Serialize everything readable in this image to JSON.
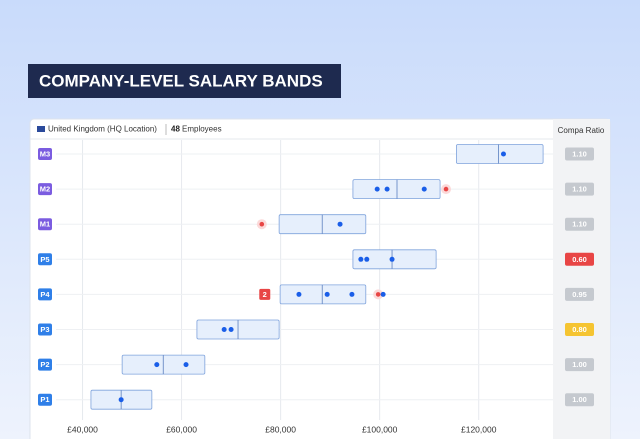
{
  "banner": {
    "title": "COMPANY-LEVEL SALARY BANDS"
  },
  "header": {
    "location": "United Kingdom (HQ Location)",
    "employee_count": "48",
    "employee_label": "Employees"
  },
  "chart_data": {
    "type": "salary_bands",
    "compa_ratio_title": "Compa Ratio",
    "xlim": [
      30000,
      135000
    ],
    "xticks": [
      {
        "value": 40000,
        "label": "£40,000"
      },
      {
        "value": 60000,
        "label": "£60,000"
      },
      {
        "value": 80000,
        "label": "£80,000"
      },
      {
        "value": 100000,
        "label": "£100,000"
      },
      {
        "value": 120000,
        "label": "£120,000"
      }
    ],
    "grid": true,
    "band_color": "#e6effc",
    "point_color": "#1a5ee8",
    "outlier_color": "#e84545",
    "levels": [
      {
        "name": "M3",
        "color": "#7b5ce0",
        "min": 115500,
        "mid": 124000,
        "max": 133000,
        "points": [
          125000
        ],
        "outliers": [],
        "ratio": "1.10",
        "ratio_color": "#c5c9cf"
      },
      {
        "name": "M2",
        "color": "#7b5ce0",
        "min": 94600,
        "mid": 103500,
        "max": 112200,
        "points": [
          99500,
          101500,
          109000
        ],
        "outliers": [
          113400
        ],
        "ratio": "1.10",
        "ratio_color": "#c5c9cf"
      },
      {
        "name": "M1",
        "color": "#7b5ce0",
        "min": 79700,
        "mid": 88400,
        "max": 97200,
        "points": [
          92000
        ],
        "outliers": [
          76200
        ],
        "ratio": "1.10",
        "ratio_color": "#c5c9cf"
      },
      {
        "name": "P5",
        "color": "#2f7fe8",
        "min": 94600,
        "mid": 102500,
        "max": 111400,
        "points": [
          96200,
          97400,
          102500
        ],
        "outliers": [],
        "ratio": "0.60",
        "ratio_color": "#e84545"
      },
      {
        "name": "P4",
        "color": "#2f7fe8",
        "min": 79900,
        "mid": 88400,
        "max": 97200,
        "points": [
          83700,
          89400,
          94400,
          100700
        ],
        "outliers": [
          99700
        ],
        "outlier_badge": {
          "value": 76800,
          "label": "2"
        },
        "ratio": "0.95",
        "ratio_color": "#c5c9cf"
      },
      {
        "name": "P3",
        "color": "#2f7fe8",
        "min": 63100,
        "mid": 71400,
        "max": 79700,
        "points": [
          68600,
          70000
        ],
        "outliers": [],
        "ratio": "0.80",
        "ratio_color": "#f5c431"
      },
      {
        "name": "P2",
        "color": "#2f7fe8",
        "min": 48000,
        "mid": 56300,
        "max": 64700,
        "points": [
          55000,
          60900
        ],
        "outliers": [],
        "ratio": "1.00",
        "ratio_color": "#c5c9cf"
      },
      {
        "name": "P1",
        "color": "#2f7fe8",
        "min": 41700,
        "mid": 47800,
        "max": 54000,
        "points": [
          47800
        ],
        "outliers": [],
        "ratio": "1.00",
        "ratio_color": "#c5c9cf"
      }
    ]
  }
}
